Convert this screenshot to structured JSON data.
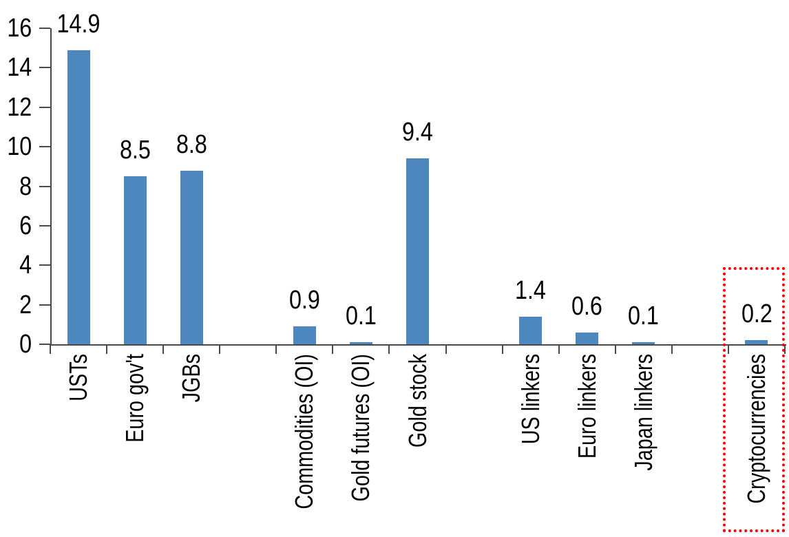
{
  "chart_data": {
    "type": "bar",
    "title": "",
    "xlabel": "",
    "ylabel": "",
    "categories": [
      "USTs",
      "Euro gov't",
      "JGBs",
      "",
      "Commodities (OI)",
      "Gold futures (OI)",
      "Gold stock",
      "",
      "US linkers",
      "Euro linkers",
      "Japan linkers",
      "",
      "Cryptocurrencies"
    ],
    "values": [
      14.9,
      8.5,
      8.8,
      null,
      0.9,
      0.1,
      9.4,
      null,
      1.4,
      0.6,
      0.1,
      null,
      0.2
    ],
    "data_labels": [
      "14.9",
      "8.5",
      "8.8",
      "",
      "0.9",
      "0.1",
      "9.4",
      "",
      "1.4",
      "0.6",
      "0.1",
      "",
      "0.2"
    ],
    "y_ticks": [
      0,
      2,
      4,
      6,
      8,
      10,
      12,
      14,
      16
    ],
    "ylim": [
      0,
      16
    ],
    "grid": false,
    "legend": "none",
    "bar_color": "#4e86be",
    "axis_color": "#4a4a4a",
    "text_color": "#000000",
    "highlight": {
      "category": "Cryptocurrencies",
      "shape": "red-dotted-rectangle",
      "color": "#ff0000"
    }
  }
}
